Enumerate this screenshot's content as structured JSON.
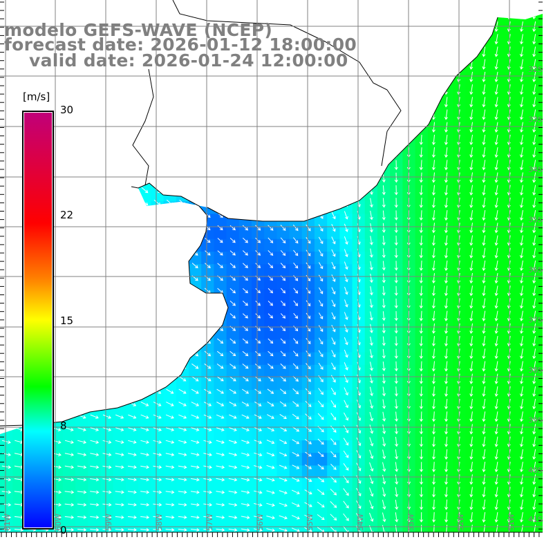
{
  "header": {
    "model": "modelo GEFS-WAVE (NCEP)",
    "forecast": "forecast date: 2026-01-12 18:00:00",
    "valid": "valid date: 2026-01-24 12:00:00"
  },
  "colorbar": {
    "unit": "[m/s]",
    "labels": [
      "30",
      "22",
      "15",
      "8",
      "0"
    ],
    "min": 0,
    "max": 30,
    "colors": [
      "#0000ff",
      "#00ffff",
      "#00ff00",
      "#ffff00",
      "#ff0000",
      "#c0007a"
    ]
  },
  "axes": {
    "lat_labels": [
      "32S",
      "33S",
      "34S",
      "35S",
      "36S",
      "37S",
      "38S",
      "39S",
      "40S",
      "41S"
    ],
    "lon_labels": [
      "61W",
      "60W",
      "59W",
      "58W",
      "57W",
      "56W",
      "55W",
      "54W",
      "53W",
      "52W",
      "51W"
    ]
  }
}
